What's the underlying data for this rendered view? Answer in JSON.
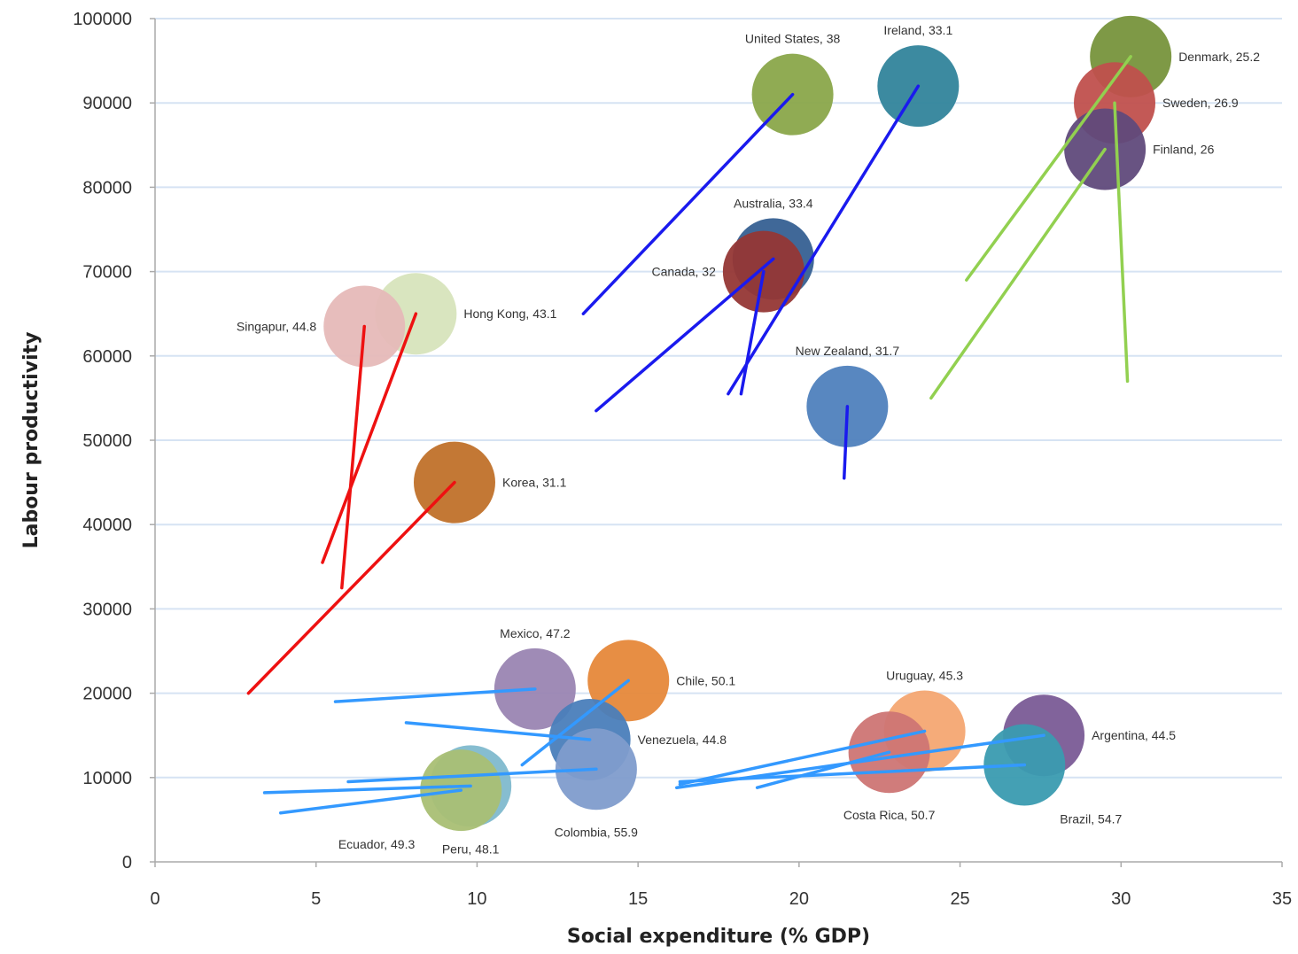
{
  "chart_data": {
    "type": "bubble",
    "xlabel": "Social expenditure (% GDP)",
    "ylabel": "Labour productivity",
    "xlim": [
      0,
      35
    ],
    "ylim": [
      0,
      100000
    ],
    "xticks": [
      0,
      5,
      10,
      15,
      20,
      25,
      30,
      35
    ],
    "yticks": [
      0,
      10000,
      20000,
      30000,
      40000,
      50000,
      60000,
      70000,
      80000,
      90000,
      100000
    ],
    "grid": "horizontal",
    "legend": "none",
    "points": [
      {
        "label": "United States, 38",
        "x": 19.8,
        "y": 91000,
        "color": "#8aa64a",
        "line_color": "#1a1aee",
        "line_from": [
          13.3,
          65000
        ],
        "label_side": "above"
      },
      {
        "label": "Ireland, 33.1",
        "x": 23.7,
        "y": 92000,
        "color": "#31849b",
        "line_color": "#1a1aee",
        "line_from": [
          17.8,
          55500
        ],
        "label_side": "above"
      },
      {
        "label": "Denmark, 25.2",
        "x": 30.3,
        "y": 95500,
        "color": "#77933c",
        "line_color": "#92d050",
        "line_from": [
          25.2,
          69000
        ],
        "label_side": "right"
      },
      {
        "label": "Sweden, 26.9",
        "x": 29.8,
        "y": 90000,
        "color": "#c0504d",
        "line_color": "#92d050",
        "line_from": [
          30.2,
          57000
        ],
        "label_side": "right"
      },
      {
        "label": "Finland, 26",
        "x": 29.5,
        "y": 84500,
        "color": "#604a7b",
        "line_color": "#92d050",
        "line_from": [
          24.1,
          55000
        ],
        "label_side": "right"
      },
      {
        "label": "Australia, 33.4",
        "x": 19.2,
        "y": 71500,
        "color": "#366092",
        "line_color": "#1a1aee",
        "line_from": [
          13.7,
          53500
        ],
        "label_side": "above"
      },
      {
        "label": "Canada, 32",
        "x": 18.9,
        "y": 70000,
        "color": "#953735",
        "line_color": "#1a1aee",
        "line_from": [
          18.2,
          55500
        ],
        "label_side": "left"
      },
      {
        "label": "New Zealand, 31.7",
        "x": 21.5,
        "y": 54000,
        "color": "#4f81bd",
        "line_color": "#1a1aee",
        "line_from": [
          21.4,
          45500
        ],
        "label_side": "above"
      },
      {
        "label": "Hong Kong, 43.1",
        "x": 8.1,
        "y": 65000,
        "color": "#d7e4bc",
        "line_color": "#ee1111",
        "line_from": [
          5.2,
          35500
        ],
        "label_side": "right"
      },
      {
        "label": "Singapur, 44.8",
        "x": 6.5,
        "y": 63500,
        "color": "#e6b9b8",
        "line_color": "#ee1111",
        "line_from": [
          5.8,
          32500
        ],
        "label_side": "left"
      },
      {
        "label": "Korea, 31.1",
        "x": 9.3,
        "y": 45000,
        "color": "#c0712a",
        "line_color": "#ee1111",
        "line_from": [
          2.9,
          20000
        ],
        "label_side": "right"
      },
      {
        "label": "Mexico, 47.2",
        "x": 11.8,
        "y": 20500,
        "color": "#9a85b2",
        "line_color": "#3399ff",
        "line_from": [
          5.6,
          19000
        ],
        "label_side": "above"
      },
      {
        "label": "Chile, 50.1",
        "x": 14.7,
        "y": 21500,
        "color": "#e6883a",
        "line_color": "#3399ff",
        "line_from": [
          11.4,
          11500
        ],
        "label_side": "right"
      },
      {
        "label": "Venezuela, 44.8",
        "x": 13.5,
        "y": 14500,
        "color": "#4a7ebb",
        "line_color": "#3399ff",
        "line_from": [
          7.8,
          16500
        ],
        "label_side": "right"
      },
      {
        "label": "Colombia, 55.9",
        "x": 13.7,
        "y": 11000,
        "color": "#7f9ccc",
        "line_color": "#3399ff",
        "line_from": [
          6.0,
          9500
        ],
        "label_side": "below"
      },
      {
        "label": "Peru, 48.1",
        "x": 9.8,
        "y": 9000,
        "color": "#7fb9cd",
        "line_color": "#3399ff",
        "line_from": [
          3.4,
          8200
        ],
        "label_side": "below"
      },
      {
        "label": "Ecuador, 49.3",
        "x": 9.5,
        "y": 8500,
        "color": "#a9bf74",
        "line_color": "#3399ff",
        "line_from": [
          3.9,
          5800
        ],
        "label_side": "below-left"
      },
      {
        "label": "Uruguay, 45.3",
        "x": 23.9,
        "y": 15500,
        "color": "#f4a772",
        "line_color": "#3399ff",
        "line_from": [
          16.3,
          9200
        ],
        "label_side": "above"
      },
      {
        "label": "Costa Rica, 50.7",
        "x": 22.8,
        "y": 13000,
        "color": "#cd7574",
        "line_color": "#3399ff",
        "line_from": [
          18.7,
          8800
        ],
        "label_side": "below"
      },
      {
        "label": "Argentina, 44.5",
        "x": 27.6,
        "y": 15000,
        "color": "#7a5b96",
        "line_color": "#3399ff",
        "line_from": [
          16.2,
          8800
        ],
        "label_side": "right"
      },
      {
        "label": "Brazil, 54.7",
        "x": 27.0,
        "y": 11500,
        "color": "#3a9bb0",
        "line_color": "#3399ff",
        "line_from": [
          16.3,
          9500
        ],
        "label_side": "below-right"
      }
    ]
  }
}
